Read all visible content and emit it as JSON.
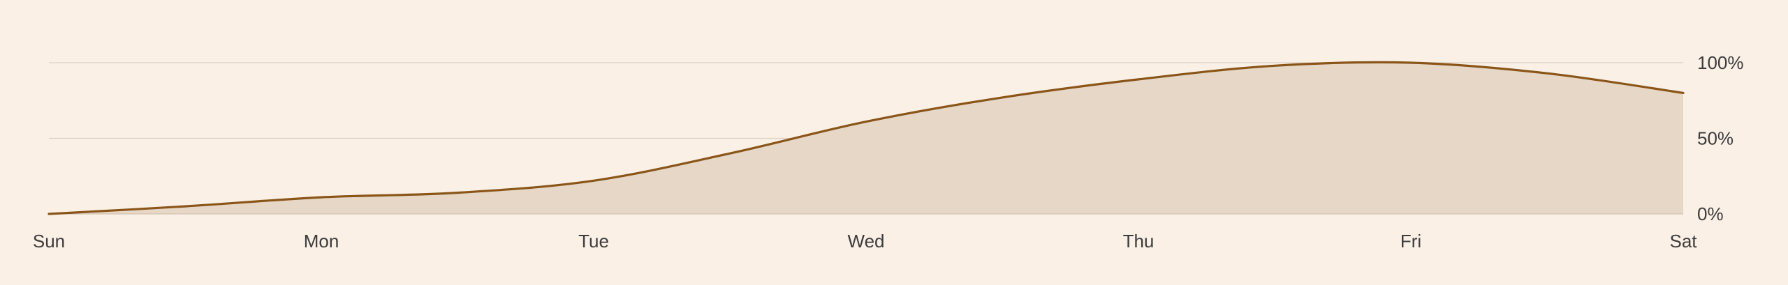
{
  "chart_data": {
    "type": "area",
    "categories": [
      "Sun",
      "Mon",
      "Tue",
      "Wed",
      "Thu",
      "Fri",
      "Sat"
    ],
    "x": [
      0,
      0.5,
      1,
      1.5,
      2,
      2.5,
      3,
      3.5,
      4,
      4.5,
      5,
      5.5,
      6
    ],
    "values": [
      0,
      5,
      11,
      14,
      22,
      40,
      61,
      77,
      89,
      98,
      100,
      93,
      80
    ],
    "y_ticks": [
      0,
      50,
      100
    ],
    "y_tick_labels": [
      "0%",
      "50%",
      "100%"
    ],
    "ylim": [
      0,
      100
    ],
    "grid": true,
    "y_axis_side": "right",
    "colors": {
      "background": "#faf0e6",
      "line": "#8a5518",
      "fill": "#e6d7c6",
      "grid": "#dcd0c4",
      "text": "#3c3c3c"
    }
  }
}
